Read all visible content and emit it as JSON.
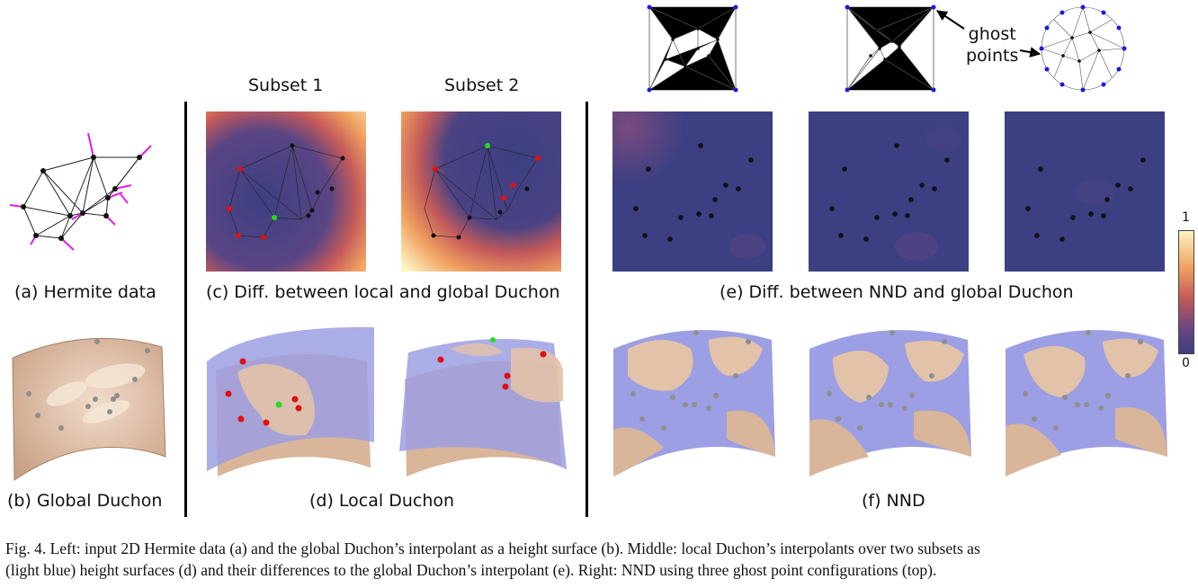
{
  "panels": {
    "a": "(a) Hermite data",
    "b": "(b) Global Duchon",
    "c": "(c) Diff. between local and global Duchon",
    "d": "(d) Local Duchon",
    "e": "(e) Diff. between NND and global Duchon",
    "f": "(f) NND"
  },
  "subsets": [
    "Subset 1",
    "Subset 2"
  ],
  "ghost_annotation": [
    "ghost",
    "points"
  ],
  "colorbar": {
    "max": "1",
    "min": "0"
  },
  "caption": {
    "line1": "Fig. 4.  Left: input 2D Hermite data (a) and the global Duchon’s interpolant as a height surface (b). Middle: local Duchon’s interpolants over two subsets as",
    "line2": "(light blue) height surfaces (d) and their differences to the global Duchon’s interpolant (e). Right: NND using three ghost point configurations (top)."
  },
  "colors": {
    "heat_low": "#3c3f82",
    "heat_mid": "#c45a5a",
    "heat_high": "#fdf2c0",
    "surface_tan": "#d9b59a",
    "surface_blue": "#9c9fe3",
    "point_red": "#e01010",
    "point_green": "#22dd22",
    "ghost_blue": "#1a1adf",
    "normal_magenta": "#e020e0"
  }
}
